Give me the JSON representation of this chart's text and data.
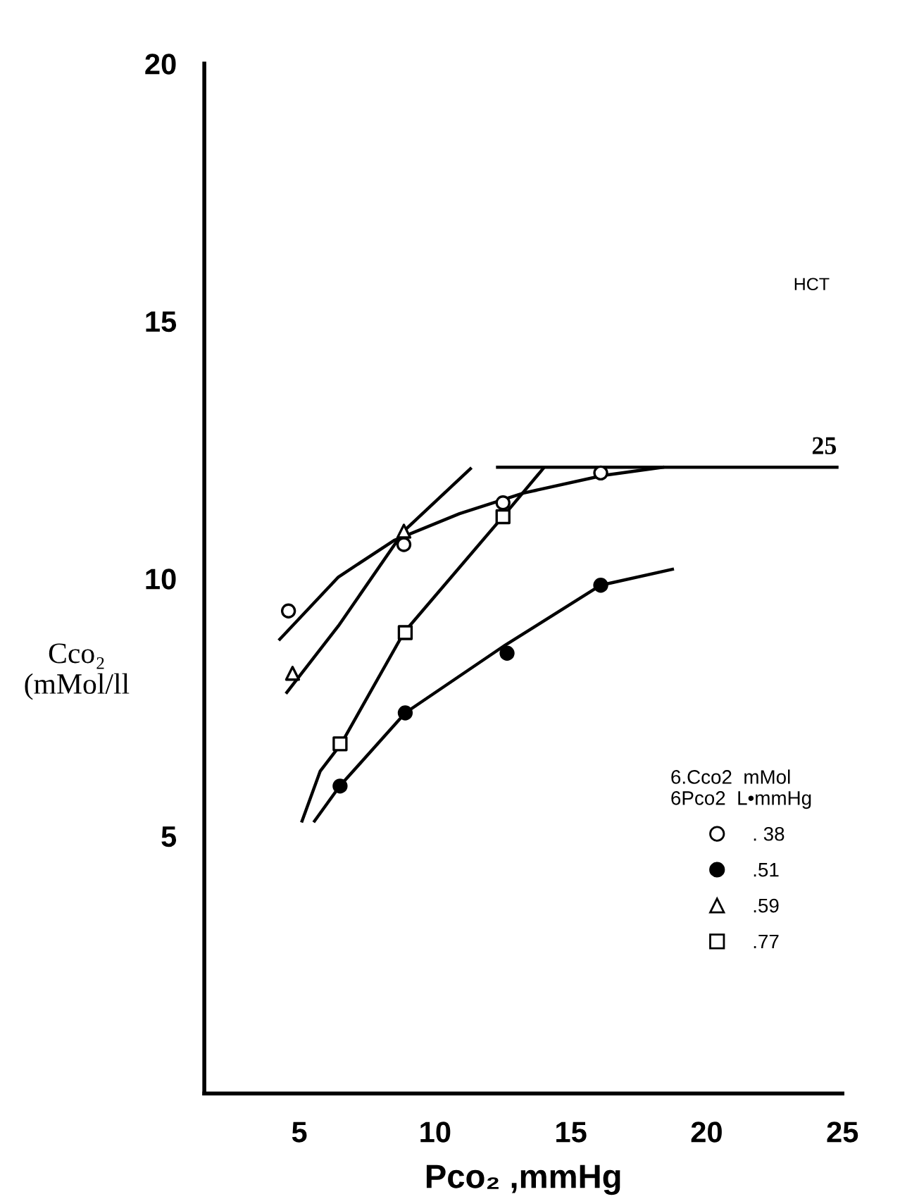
{
  "chart_data": {
    "type": "scatter",
    "xlabel": "Pco₂ ,mmHg",
    "ylabel": "Cco₂\n(mMol/ll",
    "xlim": [
      1.5,
      25
    ],
    "ylim": [
      0,
      20
    ],
    "xticks": [
      5,
      10,
      15,
      20,
      25
    ],
    "yticks": [
      5,
      10,
      15,
      20
    ],
    "grid": false,
    "legend": "bottom right",
    "legend_title": "6.Cco2  mMol\n6Pco2  L•mmHg",
    "annotations": [
      "HCT"
    ],
    "series": [
      {
        "name": ". 38",
        "marker": "circle",
        "color": "#ffffff",
        "x": [
          4.6,
          8.85,
          12.5,
          16.1
        ],
        "values": [
          9.37,
          10.66,
          11.47,
          12.05
        ]
      },
      {
        "name": ".51",
        "marker": "circle",
        "color": "#000000",
        "x": [
          6.5,
          8.9,
          12.65,
          16.1
        ],
        "values": [
          5.97,
          7.39,
          8.55,
          9.87
        ]
      },
      {
        "name": ".59",
        "marker": "triangle",
        "color": "#ffffff",
        "x": [
          4.75,
          8.85
        ],
        "values": [
          8.16,
          10.92
        ]
      },
      {
        "name": ".77",
        "marker": "square",
        "color": "#ffffff",
        "x": [
          6.5,
          8.9,
          12.5
        ],
        "values": [
          6.79,
          8.95,
          11.2
        ]
      },
      {
        "type": "line",
        "color": "#000000",
        "x": [
          4.28,
          6.44,
          8.49,
          10.9,
          13.26,
          16.18,
          18.38
        ],
        "values": [
          8.82,
          10.03,
          10.74,
          11.26,
          11.66,
          12.0,
          12.16
        ]
      },
      {
        "type": "line",
        "color": "#000000",
        "x": [
          5.56,
          6.49,
          8.9,
          12.59,
          16.1,
          18.74
        ],
        "values": [
          5.29,
          5.97,
          7.39,
          8.71,
          9.87,
          10.18
        ]
      },
      {
        "type": "line",
        "color": "#000000",
        "x": [
          4.54,
          6.44,
          8.85,
          11.3
        ],
        "values": [
          7.79,
          9.08,
          10.92,
          12.13
        ]
      },
      {
        "type": "line",
        "color": "#000000",
        "x": [
          5.1,
          5.77,
          6.54,
          8.85,
          12.59,
          13.97
        ],
        "values": [
          5.29,
          6.26,
          6.79,
          8.95,
          11.26,
          12.13
        ]
      },
      {
        "type": "line",
        "name": "25",
        "color": "#000000",
        "x": [
          12.3,
          24.8
        ],
        "values": [
          12.16,
          12.16
        ]
      }
    ]
  }
}
